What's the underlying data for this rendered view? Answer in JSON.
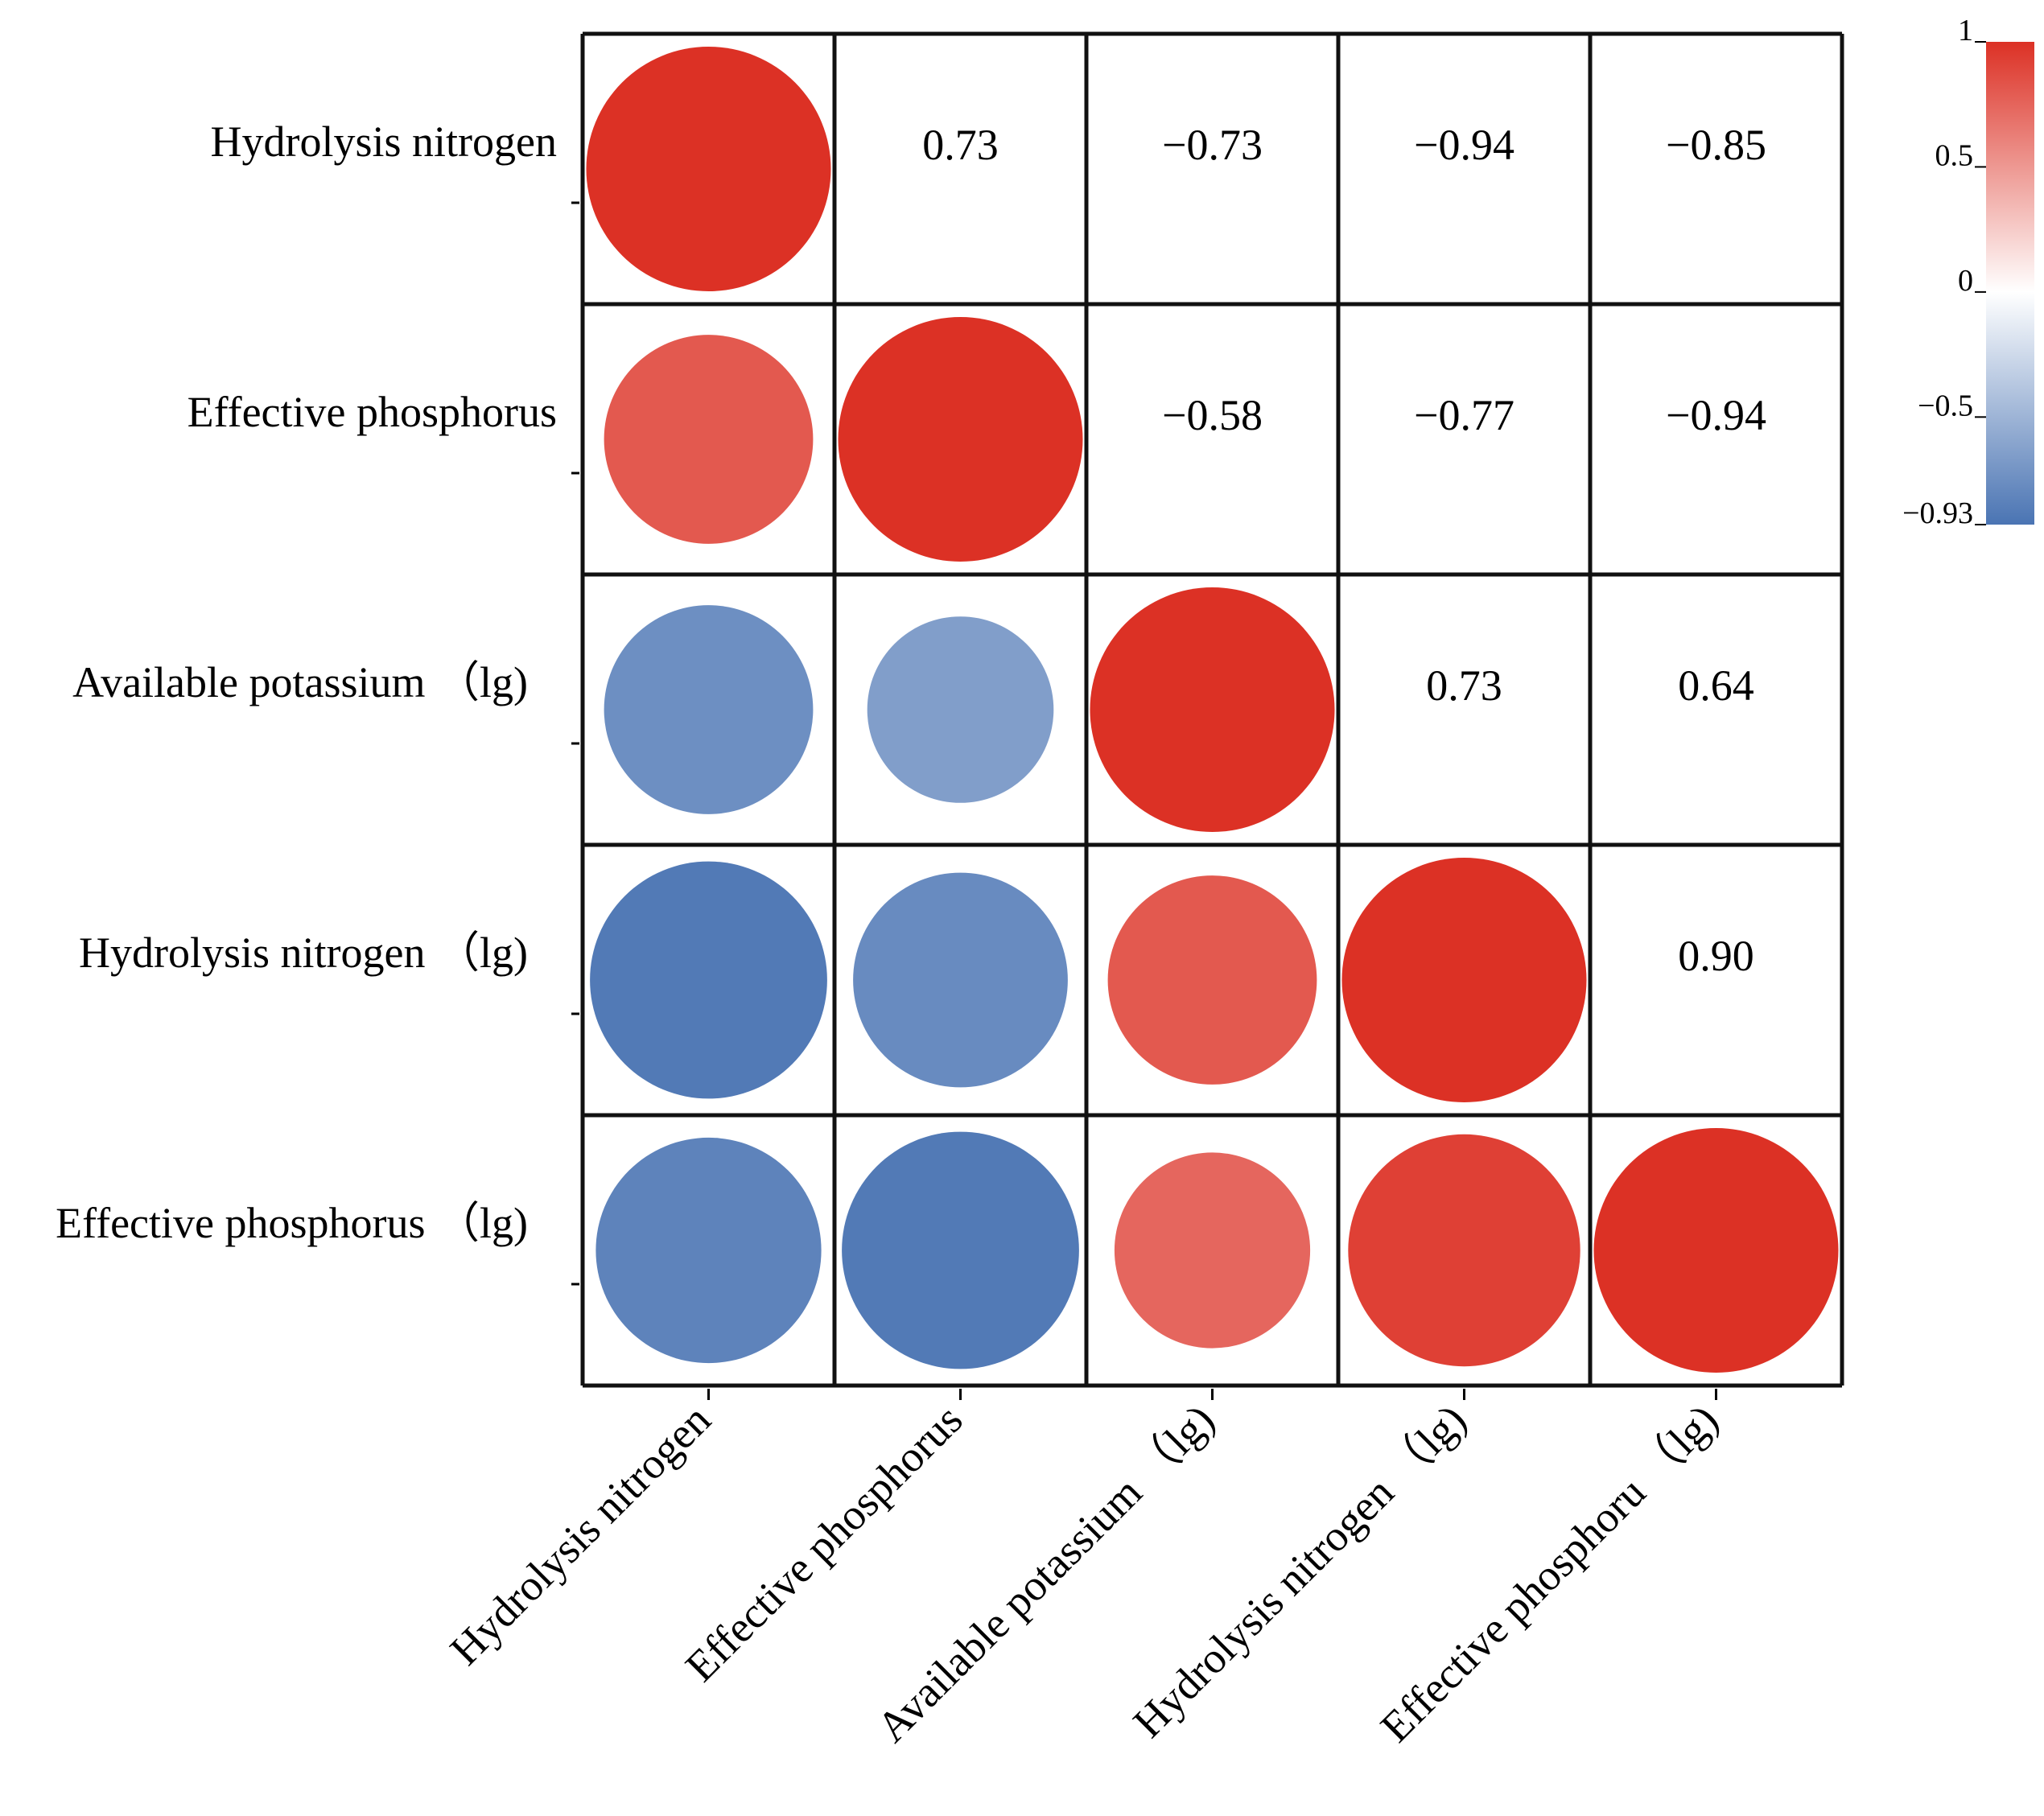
{
  "chart_data": {
    "type": "heatmap",
    "style": "correlation-matrix",
    "variables": [
      "Hydrolysis nitrogen",
      "Effective phosphorus",
      "Available potassium （lg)",
      "Hydrolysis nitrogen （lg)",
      "Effective phosphorus （lg)"
    ],
    "row_labels": [
      "Hydrolysis nitrogen",
      "Effective phosphorus",
      "Available potassium （lg)",
      "Hydrolysis nitrogen （lg)",
      "Effective phosphorus （lg)"
    ],
    "column_labels": [
      "Hydrolysis nitrogen",
      "Effective phosphorus",
      "Available potassium （lg)",
      "Hydrolysis nitrogen （lg)",
      "Effective phosphoru （lg)"
    ],
    "matrix": [
      [
        1.0,
        0.73,
        -0.73,
        -0.94,
        -0.85
      ],
      [
        0.73,
        1.0,
        -0.58,
        -0.77,
        -0.94
      ],
      [
        -0.73,
        -0.58,
        1.0,
        0.73,
        0.64
      ],
      [
        -0.94,
        -0.77,
        0.73,
        1.0,
        0.9
      ],
      [
        -0.85,
        -0.94,
        0.64,
        0.9,
        1.0
      ]
    ],
    "upper_triangle": "numbers",
    "lower_triangle": "circles",
    "diagonal": "circles",
    "value_labels": {
      "0_1": "0.73",
      "0_2": "−0.73",
      "0_3": "−0.94",
      "0_4": "−0.85",
      "1_2": "−0.58",
      "1_3": "−0.77",
      "1_4": "−0.94",
      "2_3": "0.73",
      "2_4": "0.64",
      "3_4": "0.90"
    },
    "colorbar": {
      "range": [
        -0.93,
        1
      ],
      "ticks": [
        {
          "value": 1,
          "label": "1"
        },
        {
          "value": 0.5,
          "label": "0.5"
        },
        {
          "value": 0,
          "label": "0"
        },
        {
          "value": -0.5,
          "label": "−0.5"
        },
        {
          "value": -0.93,
          "label": "−0.93"
        }
      ],
      "colors": {
        "positive": "#dc3125",
        "neutral": "#ffffff",
        "negative": "#4a74b3"
      },
      "placement": "right"
    }
  }
}
